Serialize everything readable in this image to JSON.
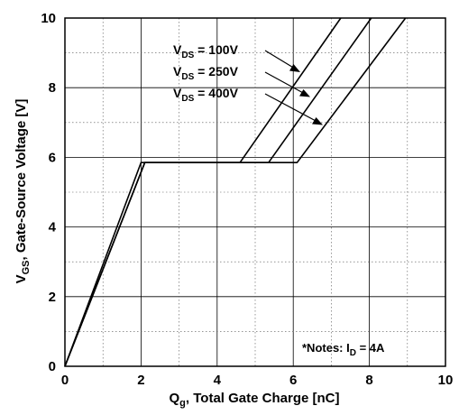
{
  "chart_data": {
    "type": "line",
    "xlabel_main": "Q",
    "xlabel_sub": "g",
    "xlabel_rest": ", Total Gate Charge [nC]",
    "ylabel_main": "V",
    "ylabel_sub": "GS",
    "ylabel_rest": ", Gate-Source Voltage [V]",
    "xlim": [
      0,
      10
    ],
    "ylim": [
      0,
      10
    ],
    "xticks": [
      0,
      2,
      4,
      6,
      8,
      10
    ],
    "yticks": [
      0,
      2,
      4,
      6,
      8,
      10
    ],
    "xtick_labels": [
      "0",
      "2",
      "4",
      "6",
      "8",
      "10"
    ],
    "ytick_labels": [
      "0",
      "2",
      "4",
      "6",
      "8",
      "10"
    ],
    "grid": true,
    "series": [
      {
        "name_main": "V",
        "name_sub": "DS",
        "name_rest": " = 100V",
        "x": [
          0,
          2.0,
          4.6,
          7.25
        ],
        "y": [
          0,
          5.85,
          5.85,
          10
        ]
      },
      {
        "name_main": "V",
        "name_sub": "DS",
        "name_rest": " = 250V",
        "x": [
          0,
          2.1,
          5.35,
          8.05
        ],
        "y": [
          0,
          5.85,
          5.85,
          10
        ]
      },
      {
        "name_main": "V",
        "name_sub": "DS",
        "name_rest": " = 400V",
        "x": [
          0,
          2.1,
          6.1,
          8.95
        ],
        "y": [
          0,
          5.85,
          5.85,
          10
        ]
      }
    ],
    "note": {
      "prefix": "*Notes: I",
      "sub": "D",
      "rest": " = 4A"
    }
  }
}
